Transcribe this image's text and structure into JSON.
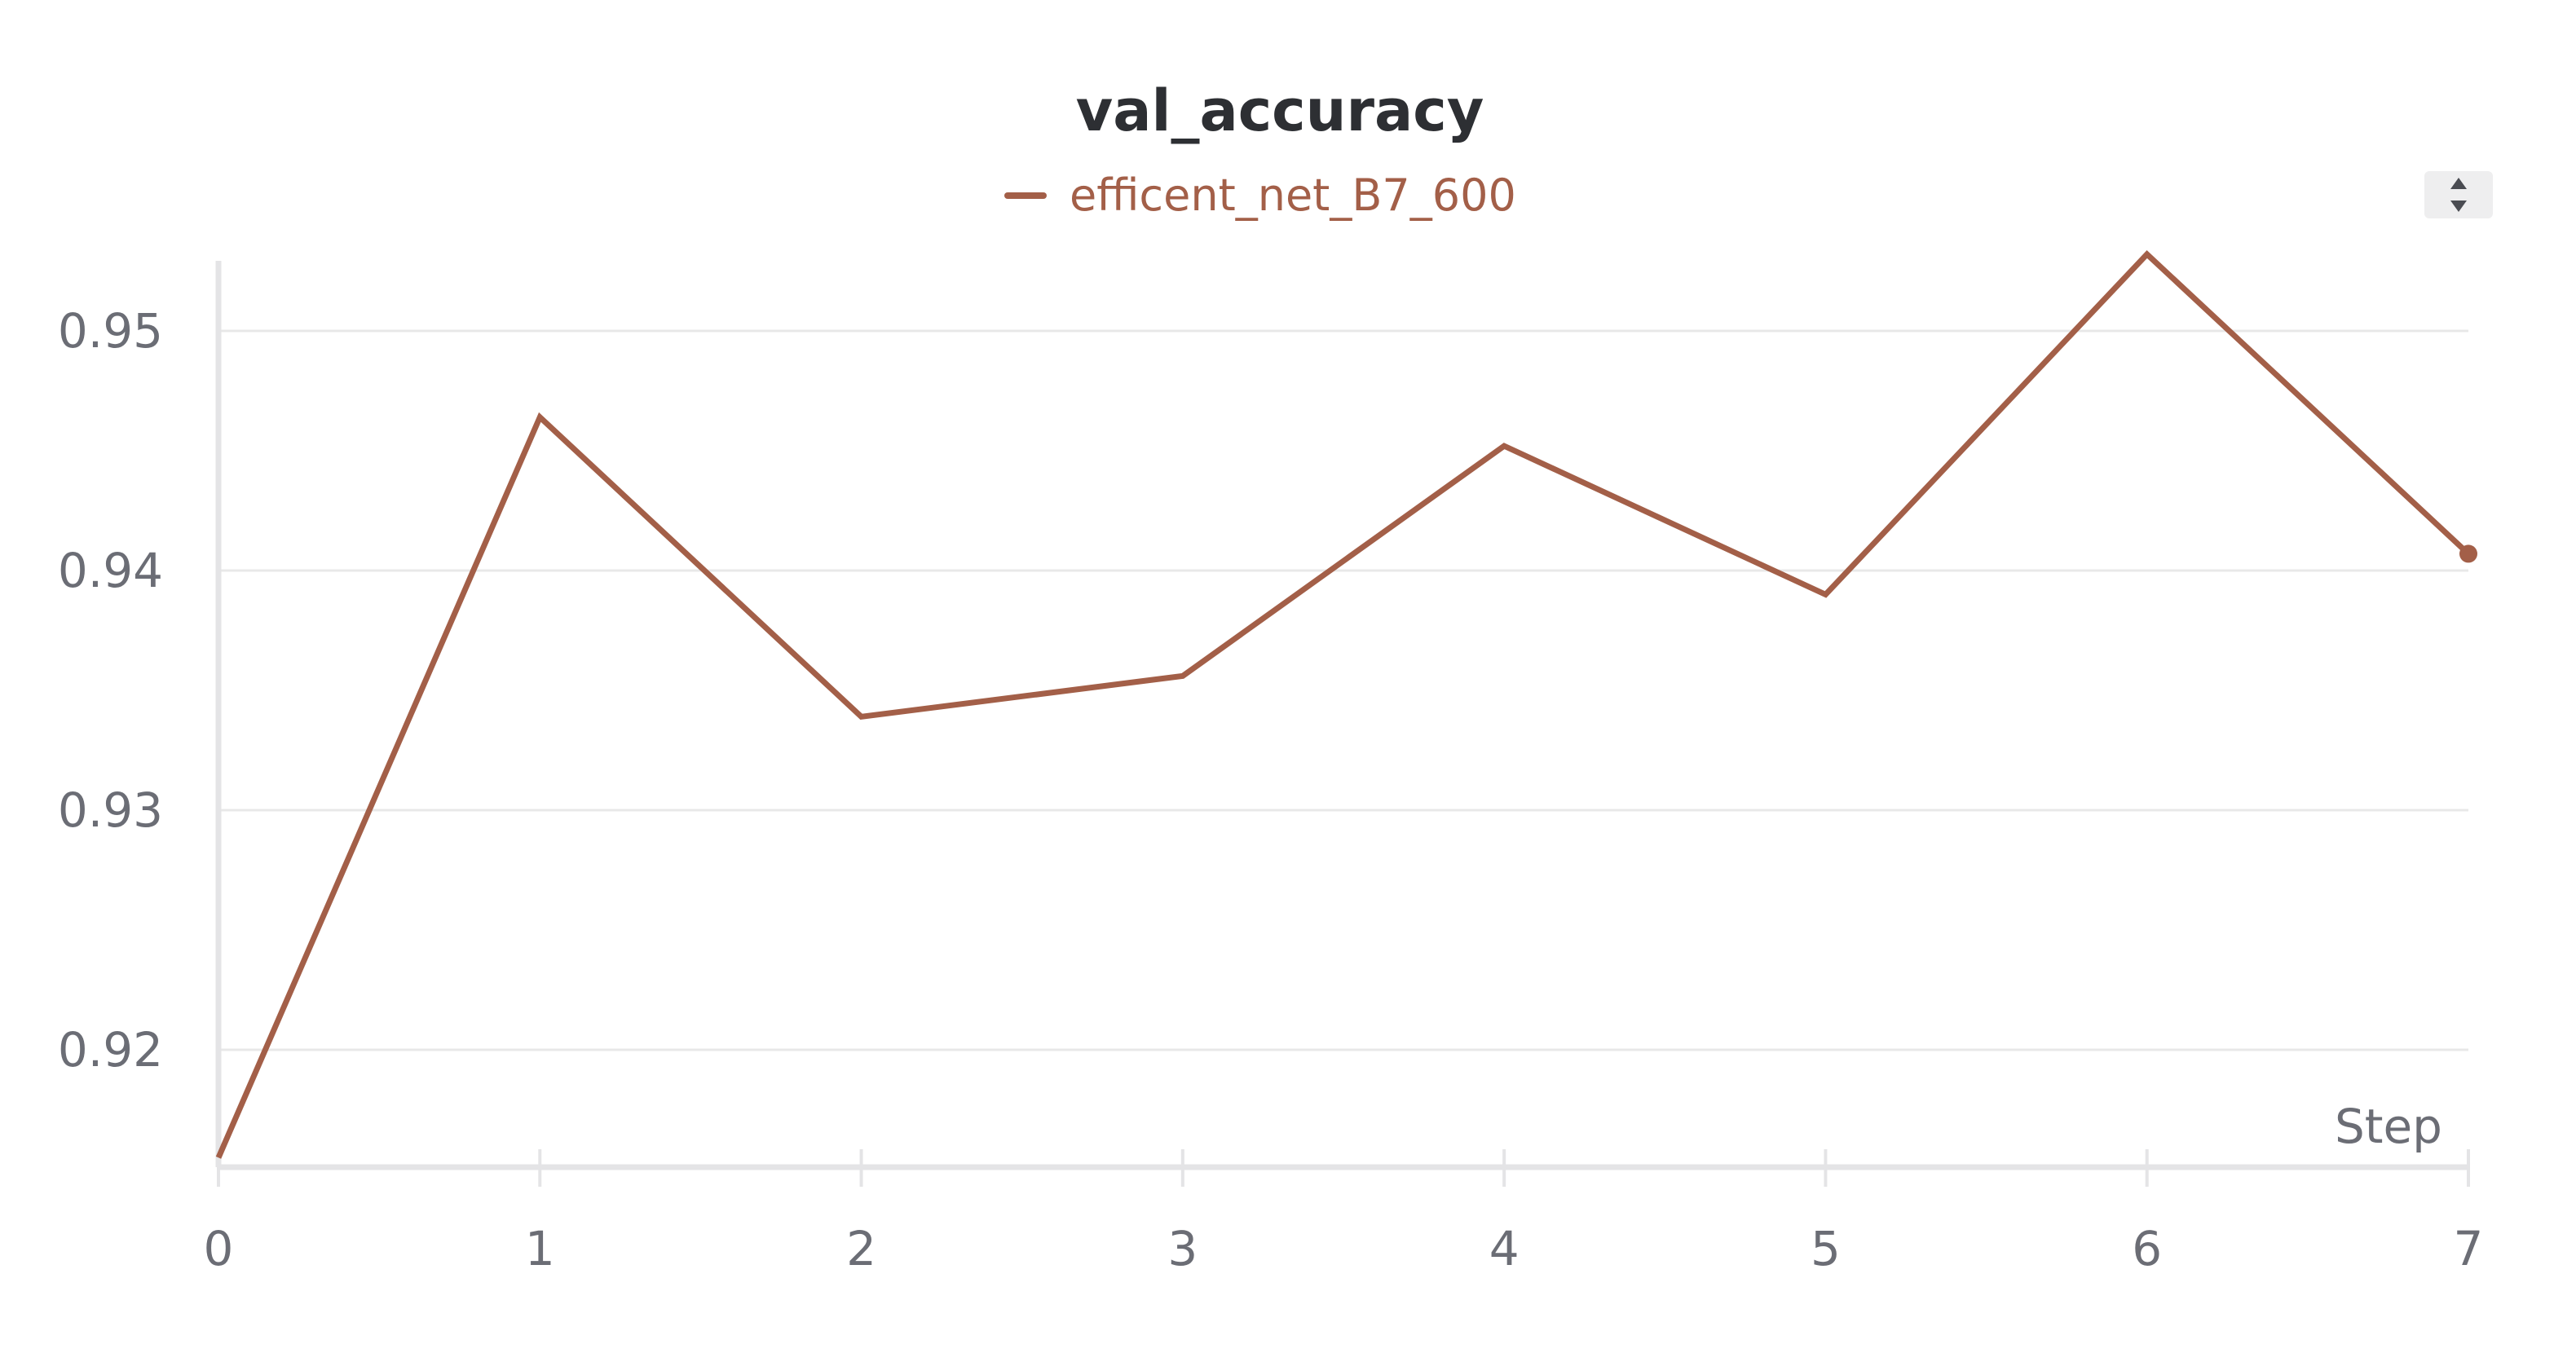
{
  "chart_data": {
    "type": "line",
    "title": "val_accuracy",
    "xlabel": "Step",
    "ylabel": "",
    "x": [
      0,
      1,
      2,
      3,
      4,
      5,
      6,
      7
    ],
    "series": [
      {
        "name": "efficent_net_B7_600",
        "color": "#a35f48",
        "values": [
          0.9155,
          0.9464,
          0.9339,
          0.9356,
          0.9452,
          0.939,
          0.9532,
          0.9407
        ]
      }
    ],
    "x_ticks": [
      "0",
      "1",
      "2",
      "3",
      "4",
      "5",
      "6",
      "7"
    ],
    "y_ticks": [
      {
        "value": 0.92,
        "label": "0.92"
      },
      {
        "value": 0.93,
        "label": "0.93"
      },
      {
        "value": 0.94,
        "label": "0.94"
      },
      {
        "value": 0.95,
        "label": "0.95"
      }
    ],
    "xlim": [
      0,
      7
    ],
    "ylim": [
      0.9155,
      0.9536
    ],
    "grid": true,
    "legend_position": "top-center"
  },
  "colors": {
    "series": "#a35f48",
    "grid": "#e8e8e8",
    "axis": "#e4e4e6",
    "tick_text": "#6b6d75",
    "title": "#2d2f33"
  },
  "controls": {
    "sort_icon": "sort-up-down-icon"
  }
}
